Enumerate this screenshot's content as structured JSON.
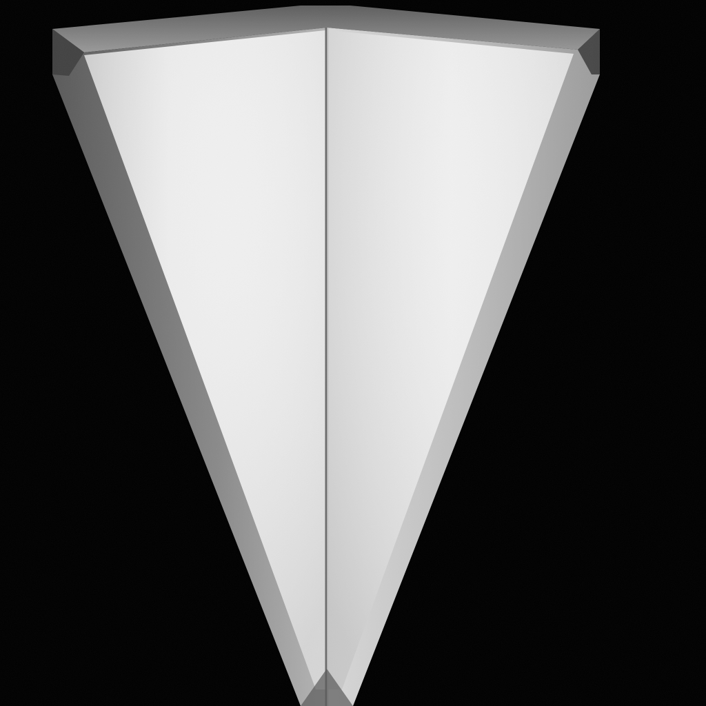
{
  "scene": {
    "subject_icon": "metal-shield-icon",
    "background_color": "#000000",
    "face_color_light": "#f4f4f4",
    "face_color_mid": "#e6e6e6",
    "bevel_color_light": "#a8a8a8",
    "bevel_color_dark": "#4a4a4a",
    "ridge_color": "#6e6e6e"
  }
}
